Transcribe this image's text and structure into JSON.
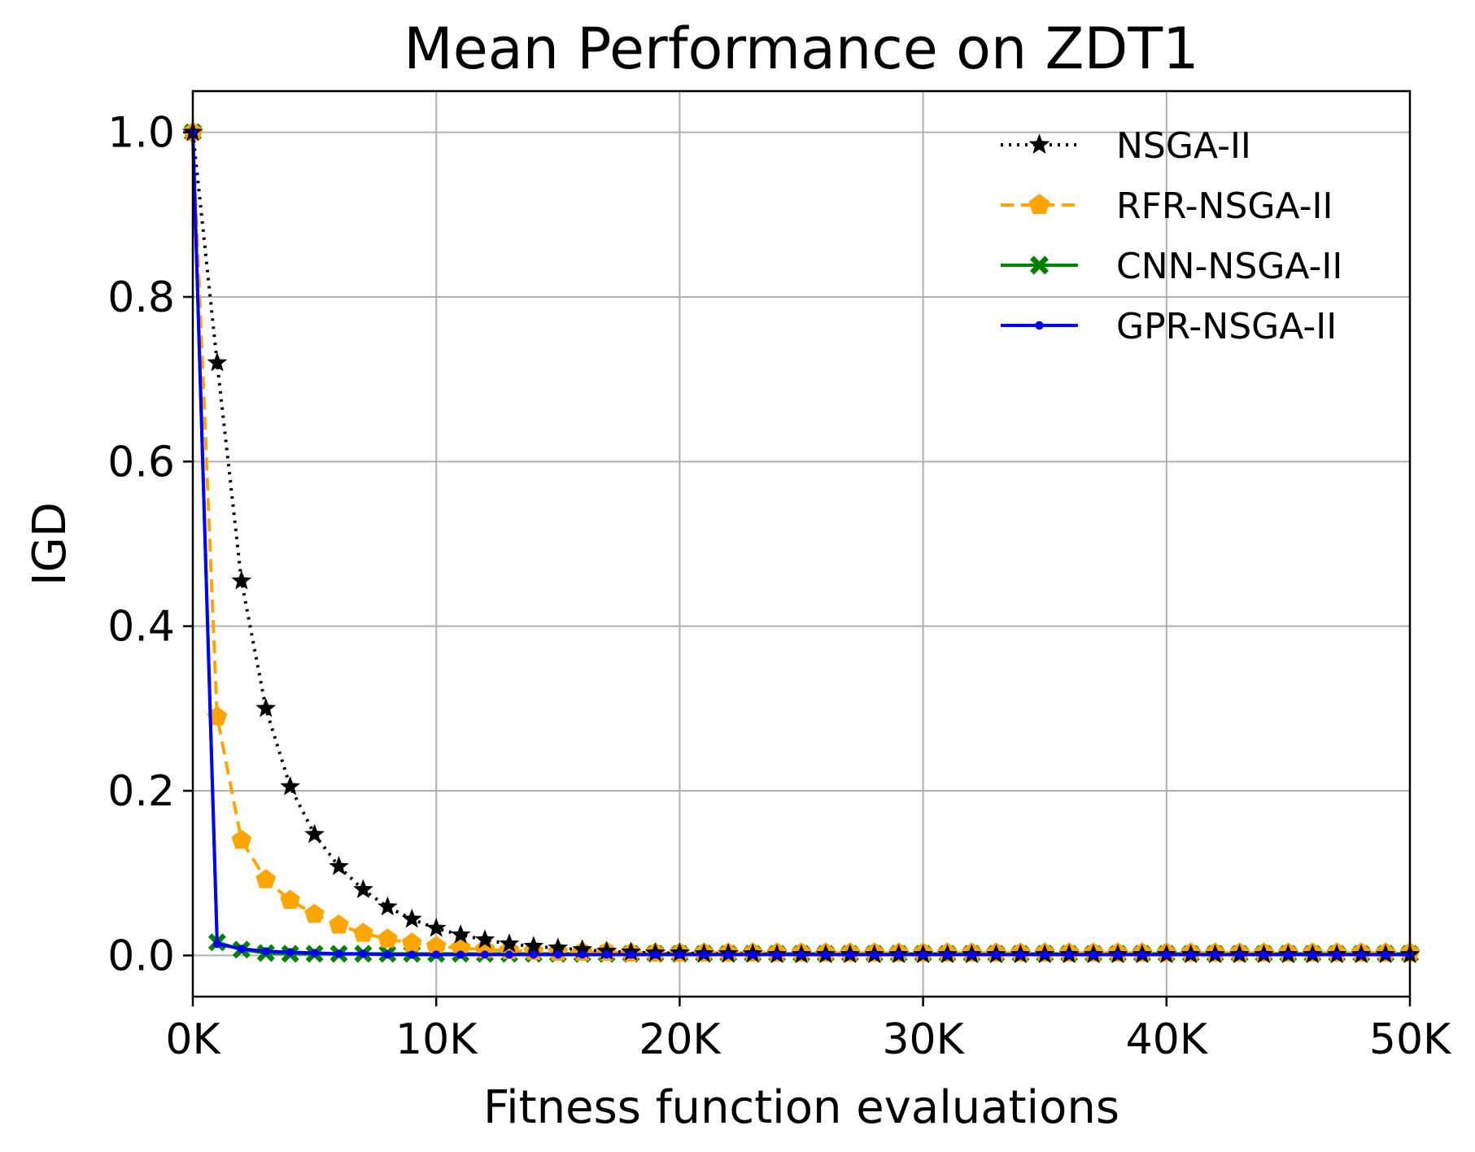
{
  "chart_data": {
    "type": "line",
    "title": "Mean Performance on ZDT1",
    "xlabel": "Fitness function evaluations",
    "ylabel": "IGD",
    "xlim": [
      0,
      50000
    ],
    "ylim": [
      -0.05,
      1.05
    ],
    "xticks": [
      0,
      10000,
      20000,
      30000,
      40000,
      50000
    ],
    "xtick_labels": [
      "0K",
      "10K",
      "20K",
      "30K",
      "40K",
      "50K"
    ],
    "yticks": [
      0.0,
      0.2,
      0.4,
      0.6,
      0.8,
      1.0
    ],
    "ytick_labels": [
      "0.0",
      "0.2",
      "0.4",
      "0.6",
      "0.8",
      "1.0"
    ],
    "grid": true,
    "legend_position": "top-right",
    "x": [
      0,
      1000,
      2000,
      3000,
      4000,
      5000,
      6000,
      7000,
      8000,
      9000,
      10000,
      11000,
      12000,
      13000,
      14000,
      15000,
      16000,
      17000,
      18000,
      19000,
      20000,
      21000,
      22000,
      23000,
      24000,
      25000,
      26000,
      27000,
      28000,
      29000,
      30000,
      31000,
      32000,
      33000,
      34000,
      35000,
      36000,
      37000,
      38000,
      39000,
      40000,
      41000,
      42000,
      43000,
      44000,
      45000,
      46000,
      47000,
      48000,
      49000,
      50000
    ],
    "series": [
      {
        "name": "NSGA-II",
        "color": "#000000",
        "line_style": "dotted",
        "marker": "star",
        "values": [
          1.0,
          0.72,
          0.455,
          0.3,
          0.205,
          0.147,
          0.108,
          0.08,
          0.059,
          0.044,
          0.033,
          0.025,
          0.019,
          0.014,
          0.011,
          0.009,
          0.007,
          0.005,
          0.004,
          0.003,
          0.003,
          0.002,
          0.002,
          0.002,
          0.001,
          0.001,
          0.001,
          0.001,
          0.001,
          0.001,
          0.001,
          0.001,
          0.001,
          0.001,
          0.001,
          0.001,
          0.001,
          0.001,
          0.001,
          0.001,
          0.001,
          0.001,
          0.001,
          0.001,
          0.001,
          0.001,
          0.001,
          0.001,
          0.001,
          0.001,
          0.001
        ]
      },
      {
        "name": "RFR-NSGA-II",
        "color": "#FFA500",
        "line_style": "dashed",
        "marker": "pentagon",
        "values": [
          1.0,
          0.29,
          0.14,
          0.092,
          0.067,
          0.05,
          0.037,
          0.027,
          0.02,
          0.015,
          0.011,
          0.009,
          0.007,
          0.006,
          0.005,
          0.004,
          0.004,
          0.004,
          0.003,
          0.003,
          0.003,
          0.003,
          0.003,
          0.003,
          0.003,
          0.003,
          0.003,
          0.003,
          0.003,
          0.003,
          0.003,
          0.003,
          0.003,
          0.003,
          0.003,
          0.003,
          0.003,
          0.003,
          0.003,
          0.003,
          0.003,
          0.003,
          0.003,
          0.003,
          0.003,
          0.003,
          0.003,
          0.003,
          0.003,
          0.003,
          0.003
        ]
      },
      {
        "name": "CNN-NSGA-II",
        "color": "#008000",
        "line_style": "solid",
        "marker": "x",
        "values": [
          1.0,
          0.016,
          0.007,
          0.003,
          0.002,
          0.002,
          0.002,
          0.002,
          0.002,
          0.002,
          0.002,
          0.002,
          0.002,
          0.002,
          0.002,
          0.002,
          0.002,
          0.002,
          0.002,
          0.002,
          0.002,
          0.002,
          0.002,
          0.002,
          0.002,
          0.002,
          0.002,
          0.002,
          0.002,
          0.002,
          0.002,
          0.002,
          0.002,
          0.002,
          0.002,
          0.002,
          0.002,
          0.002,
          0.002,
          0.002,
          0.002,
          0.002,
          0.002,
          0.002,
          0.002,
          0.002,
          0.002,
          0.002,
          0.002,
          0.002,
          0.002
        ]
      },
      {
        "name": "GPR-NSGA-II",
        "color": "#0000FF",
        "line_style": "solid",
        "marker": "dot",
        "values": [
          1.0,
          0.014,
          0.008,
          0.005,
          0.004,
          0.003,
          0.002,
          0.002,
          0.001,
          0.001,
          0.001,
          0.001,
          0.001,
          0.001,
          0.001,
          0.001,
          0.001,
          0.001,
          0.001,
          0.001,
          0.001,
          0.001,
          0.001,
          0.001,
          0.001,
          0.001,
          0.001,
          0.001,
          0.001,
          0.001,
          0.001,
          0.001,
          0.001,
          0.001,
          0.001,
          0.001,
          0.001,
          0.001,
          0.001,
          0.001,
          0.001,
          0.001,
          0.001,
          0.001,
          0.001,
          0.001,
          0.001,
          0.001,
          0.001,
          0.001,
          0.001
        ]
      }
    ]
  }
}
